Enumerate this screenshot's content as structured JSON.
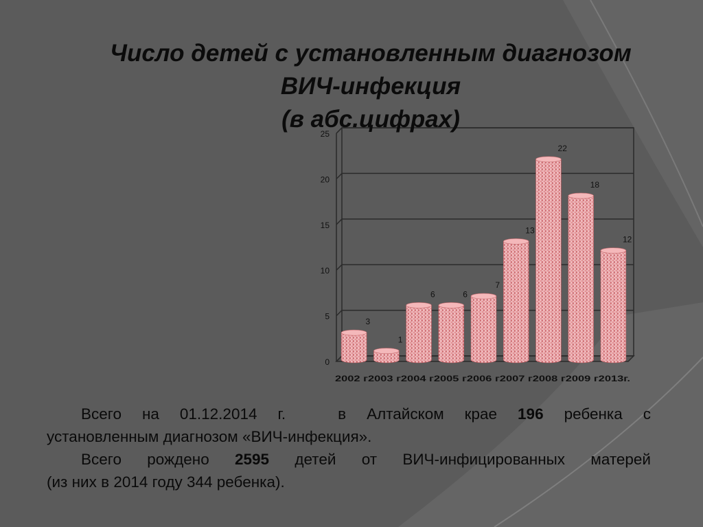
{
  "slide": {
    "title_line1": "Число детей с установленным диагнозом",
    "title_line2": "ВИЧ-инфекция",
    "title_line3": "(в абс.цифрах)",
    "colors": {
      "background": "#5f5f5f",
      "bar": "#e48c90",
      "bar_top": "#f4b8ba",
      "grid": "#2b2b2b"
    }
  },
  "text": {
    "p1_a": "Всего на 01.12.2014 г.",
    "p1_b": "в Алтайском крае",
    "p1_num": "196",
    "p1_c": "ребенка с",
    "p1_d": "установленным диагнозом «ВИЧ-инфекция».",
    "p2_a": "Всего рождено",
    "p2_num": "2595",
    "p2_b": "детей от ВИЧ-инфицированных матерей",
    "p2_c": "(из них в 2014 году 344 ребенка)."
  },
  "chart_data": {
    "type": "bar",
    "title": "",
    "xlabel": "",
    "ylabel": "",
    "categories": [
      "2002 г.",
      "2003 г.",
      "2004 г.",
      "2005 г.",
      "2006 г.",
      "2007 г.",
      "2008 г.",
      "2009 г.",
      "2013г."
    ],
    "x_axis_text": "2002 г2003 г2004 г2005 г2006 г2007 г2008 г2009 г2013г.",
    "values": [
      3,
      1,
      6,
      6,
      7,
      13,
      22,
      18,
      12
    ],
    "ylim": [
      0,
      25
    ],
    "yticks": [
      0,
      5,
      10,
      15,
      20,
      25
    ],
    "grid": true,
    "legend": "none"
  }
}
